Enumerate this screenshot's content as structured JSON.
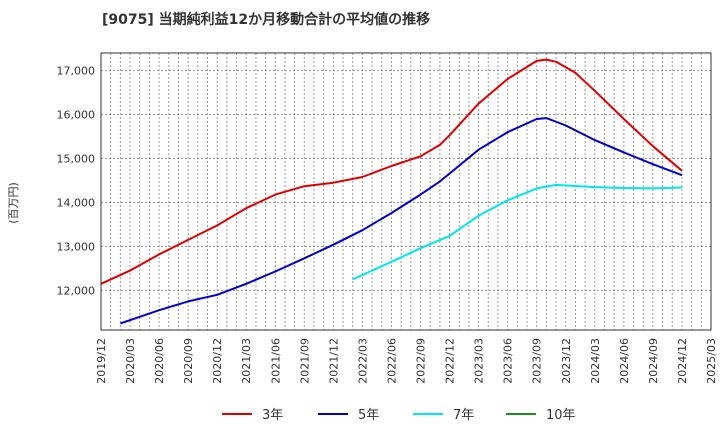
{
  "chart_data": {
    "type": "line",
    "title": "[9075]  当期純利益12か月移動合計の平均値の推移",
    "ylabel": "(百万円)",
    "xlabel": "",
    "ylim": [
      11100,
      17400
    ],
    "yticks": [
      12000,
      13000,
      14000,
      15000,
      16000,
      17000
    ],
    "ytick_labels": [
      "12,000",
      "13,000",
      "14,000",
      "15,000",
      "16,000",
      "17,000"
    ],
    "xlim": [
      "2019-12",
      "2025-03"
    ],
    "xtick_labels": [
      "2019/12",
      "2020/03",
      "2020/06",
      "2020/09",
      "2020/12",
      "2021/03",
      "2021/06",
      "2021/09",
      "2021/12",
      "2022/03",
      "2022/06",
      "2022/09",
      "2022/12",
      "2023/03",
      "2023/06",
      "2023/09",
      "2023/12",
      "2024/03",
      "2024/06",
      "2024/09",
      "2024/12",
      "2025/03"
    ],
    "grid": true,
    "legend_position": "bottom",
    "series": [
      {
        "name": "3年",
        "color": "#dd0000",
        "x": [
          "2019-12",
          "2020-03",
          "2020-06",
          "2020-09",
          "2020-12",
          "2021-03",
          "2021-06",
          "2021-09",
          "2021-12",
          "2022-03",
          "2022-06",
          "2022-09",
          "2022-11",
          "2022-12",
          "2023-03",
          "2023-06",
          "2023-09",
          "2023-10",
          "2023-11",
          "2024-01",
          "2024-03",
          "2024-06",
          "2024-09",
          "2024-12"
        ],
        "y": [
          12150,
          12450,
          12820,
          13150,
          13480,
          13870,
          14180,
          14370,
          14450,
          14580,
          14830,
          15050,
          15310,
          15530,
          16250,
          16810,
          17220,
          17250,
          17200,
          16950,
          16540,
          15900,
          15280,
          14720
        ]
      },
      {
        "name": "5年",
        "color": "#0000cc",
        "x": [
          "2020-02",
          "2020-06",
          "2020-09",
          "2020-12",
          "2021-03",
          "2021-06",
          "2021-09",
          "2021-12",
          "2022-03",
          "2022-06",
          "2022-09",
          "2022-11",
          "2022-12",
          "2023-03",
          "2023-06",
          "2023-09",
          "2023-10",
          "2023-12",
          "2024-03",
          "2024-06",
          "2024-09",
          "2024-12"
        ],
        "y": [
          11250,
          11550,
          11750,
          11900,
          12150,
          12430,
          12730,
          13040,
          13370,
          13760,
          14180,
          14480,
          14660,
          15200,
          15600,
          15900,
          15920,
          15750,
          15420,
          15140,
          14870,
          14620
        ]
      },
      {
        "name": "7年",
        "color": "#00e5ee",
        "x": [
          "2022-02",
          "2022-06",
          "2022-09",
          "2022-12",
          "2023-03",
          "2023-06",
          "2023-09",
          "2023-11",
          "2024-03",
          "2024-06",
          "2024-09",
          "2024-12"
        ],
        "y": [
          12250,
          12650,
          12960,
          13240,
          13700,
          14050,
          14320,
          14400,
          14350,
          14330,
          14320,
          14340
        ]
      },
      {
        "name": "10年",
        "color": "#228b22",
        "x": [],
        "y": []
      }
    ]
  }
}
